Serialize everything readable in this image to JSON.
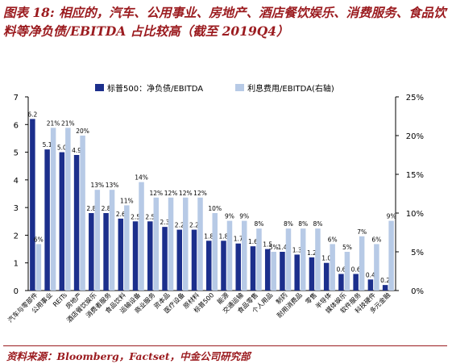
{
  "title": "图表 18: 相应的，汽车、公用事业、房地产、酒店餐饮娱乐、消费服务、食品饮料等净负债/EBITDA 占比较高（截至 2019Q4）",
  "source": "资料来源：Bloomberg，Factset，中金公司研究部",
  "colors": {
    "primary": "#1c2f8c",
    "secondary": "#b7cae6",
    "accent": "#9b1b1f"
  },
  "chart_data": {
    "type": "bar",
    "categories": [
      "汽车与零部件",
      "公用事业",
      "REITs",
      "房地产",
      "酒店餐饮娱乐",
      "消费者服务",
      "食品饮料",
      "运输设备",
      "商业服务",
      "资本品",
      "医疗设备",
      "原材料",
      "标普500",
      "能源",
      "交通运输",
      "食品零售",
      "个人用品",
      "制药",
      "耐用消费品",
      "零售",
      "半导体",
      "媒体娱乐",
      "软件服务",
      "科技硬件",
      "多元金融"
    ],
    "series": [
      {
        "name": "标普500：净负债/EBITDA",
        "axis": "left",
        "values": [
          6.2,
          5.1,
          5.0,
          4.9,
          2.8,
          2.8,
          2.6,
          2.5,
          2.5,
          2.3,
          2.2,
          2.2,
          1.8,
          1.8,
          1.7,
          1.6,
          1.5,
          1.4,
          1.3,
          1.2,
          1.0,
          0.6,
          0.6,
          0.4,
          0.2
        ],
        "labels": [
          "6.2",
          "5.1",
          "5.0",
          "4.9",
          "2.8",
          "2.8",
          "2.6",
          "2.5",
          "2.5",
          "2.3",
          "2.2",
          "2.2",
          "1.8",
          "1.8",
          "1.7",
          "1.6",
          "1.5",
          "1.4",
          "1.3",
          "1.2",
          "1.0",
          "0.6",
          "0.6",
          "0.4",
          "0.2"
        ]
      },
      {
        "name": "利息费用/EBITDA(右轴)",
        "axis": "right",
        "values": [
          6,
          21,
          21,
          20,
          13,
          13,
          11,
          14,
          12,
          12,
          12,
          12,
          10,
          9,
          9,
          8,
          5,
          8,
          8,
          8,
          6,
          5,
          7,
          6,
          9
        ],
        "labels": [
          "6%",
          "21%",
          "21%",
          "20%",
          "13%",
          "13%",
          "11%",
          "14%",
          "12%",
          "12%",
          "12%",
          "12%",
          "10%",
          "9%",
          "9%",
          "8%",
          "5%",
          "8%",
          "8%",
          "8%",
          "6%",
          "5%",
          "7%",
          "6%",
          "9%"
        ]
      }
    ],
    "ylim": [
      0,
      7
    ],
    "y_ticks": [
      "0",
      "1",
      "2",
      "3",
      "4",
      "5",
      "6",
      "7"
    ],
    "y2lim": [
      0,
      25
    ],
    "y2_ticks": [
      "0%",
      "5%",
      "10%",
      "15%",
      "20%",
      "25%"
    ],
    "legend_position": "top",
    "grid": false
  }
}
